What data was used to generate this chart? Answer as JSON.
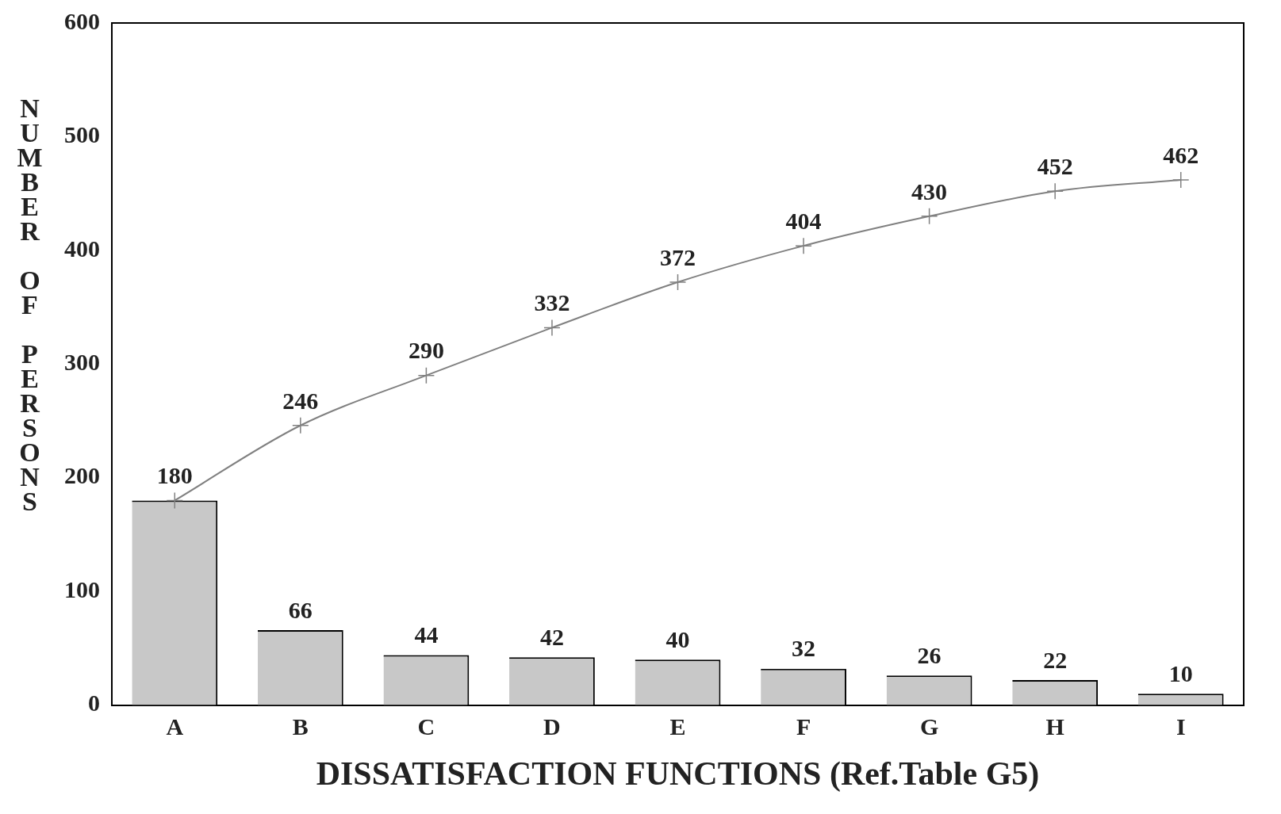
{
  "chart_data": {
    "type": "bar",
    "xlabel": "DISSATISFACTION FUNCTIONS (Ref.Table G5)",
    "ylabel": "NUMBER OF PERSONS",
    "categories": [
      "A",
      "B",
      "C",
      "D",
      "E",
      "F",
      "G",
      "H",
      "I"
    ],
    "series": [
      {
        "color": "#c8c8c8",
        "values": [
          180,
          66,
          44,
          42,
          40,
          32,
          26,
          22,
          10
        ],
        "value_labels": [
          null,
          "66",
          "44",
          "42",
          "40",
          "32",
          "26",
          "22",
          "10"
        ]
      },
      {
        "type": "line",
        "color": "#808080",
        "marker": "cross",
        "values": [
          180,
          246,
          290,
          332,
          372,
          404,
          430,
          452,
          462
        ],
        "value_labels": [
          "180",
          "246",
          "290",
          "332",
          "372",
          "404",
          "430",
          "452",
          "462"
        ]
      }
    ],
    "ylim": [
      0,
      600
    ],
    "yticks": [
      0,
      100,
      200,
      300,
      400,
      500,
      600
    ],
    "grid": false,
    "legend": false
  }
}
